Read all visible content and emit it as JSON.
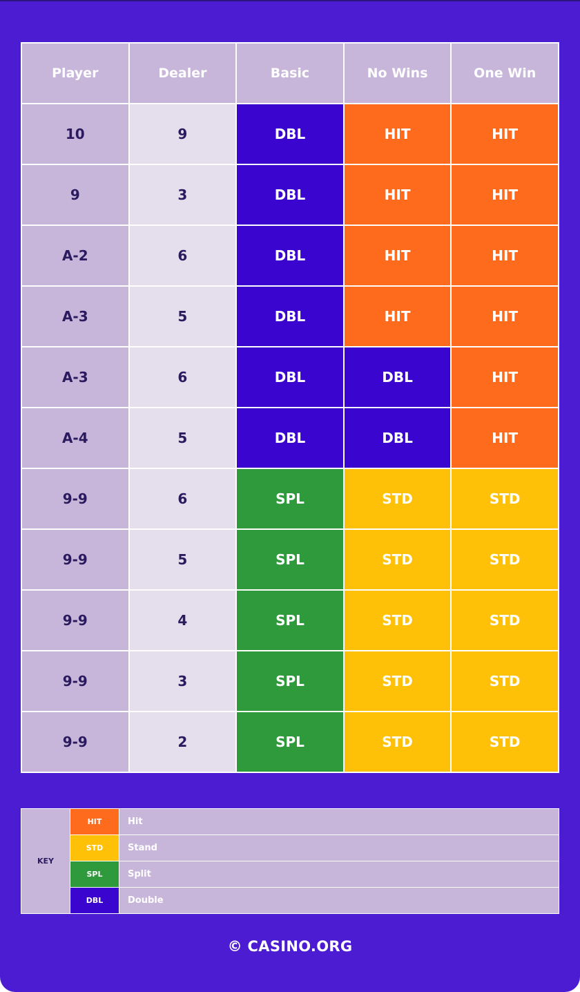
{
  "headers": [
    "Player",
    "Dealer",
    "Basic",
    "No Wins",
    "One Win"
  ],
  "rows": [
    {
      "player": "10",
      "dealer": "9",
      "basic": "DBL",
      "no_wins": "HIT",
      "one_win": "HIT"
    },
    {
      "player": "9",
      "dealer": "3",
      "basic": "DBL",
      "no_wins": "HIT",
      "one_win": "HIT"
    },
    {
      "player": "A-2",
      "dealer": "6",
      "basic": "DBL",
      "no_wins": "HIT",
      "one_win": "HIT"
    },
    {
      "player": "A-3",
      "dealer": "5",
      "basic": "DBL",
      "no_wins": "HIT",
      "one_win": "HIT"
    },
    {
      "player": "A-3",
      "dealer": "6",
      "basic": "DBL",
      "no_wins": "DBL",
      "one_win": "HIT"
    },
    {
      "player": "A-4",
      "dealer": "5",
      "basic": "DBL",
      "no_wins": "DBL",
      "one_win": "HIT"
    },
    {
      "player": "9-9",
      "dealer": "6",
      "basic": "SPL",
      "no_wins": "STD",
      "one_win": "STD"
    },
    {
      "player": "9-9",
      "dealer": "5",
      "basic": "SPL",
      "no_wins": "STD",
      "one_win": "STD"
    },
    {
      "player": "9-9",
      "dealer": "4",
      "basic": "SPL",
      "no_wins": "STD",
      "one_win": "STD"
    },
    {
      "player": "9-9",
      "dealer": "3",
      "basic": "SPL",
      "no_wins": "STD",
      "one_win": "STD"
    },
    {
      "player": "9-9",
      "dealer": "2",
      "basic": "SPL",
      "no_wins": "STD",
      "one_win": "STD"
    }
  ],
  "key": {
    "label": "KEY",
    "items": [
      {
        "code": "HIT",
        "description": "Hit"
      },
      {
        "code": "STD",
        "description": "Stand"
      },
      {
        "code": "SPL",
        "description": "Split"
      },
      {
        "code": "DBL",
        "description": "Double"
      }
    ]
  },
  "colors": {
    "background": "#4c1cd2",
    "HIT": "#ff6b1c",
    "STD": "#ffc107",
    "SPL": "#2f9a3c",
    "DBL": "#3a05cf",
    "player_cell": "#c7b6da",
    "dealer_cell": "#e4deed"
  },
  "footer": "© CASINO.ORG"
}
